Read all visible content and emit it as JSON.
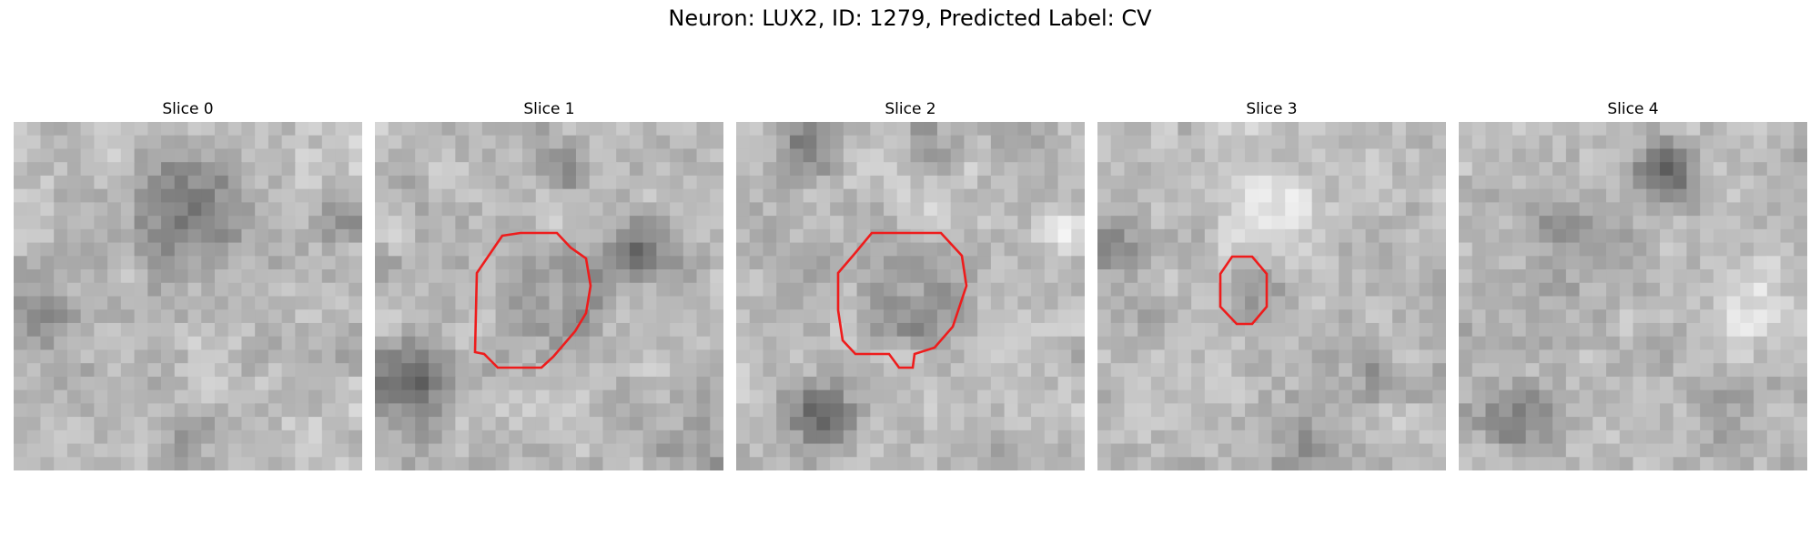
{
  "figure": {
    "title": "Neuron: LUX2, ID: 1279, Predicted Label: CV"
  },
  "panels": [
    {
      "title": "Slice 0",
      "has_contour": false,
      "seed": 11
    },
    {
      "title": "Slice 1",
      "has_contour": true,
      "seed": 23
    },
    {
      "title": "Slice 2",
      "has_contour": true,
      "seed": 37
    },
    {
      "title": "Slice 3",
      "has_contour": true,
      "seed": 41
    },
    {
      "title": "Slice 4",
      "has_contour": false,
      "seed": 53
    }
  ],
  "colors": {
    "contour": "#ee1c1c"
  },
  "grid": {
    "cells": 26
  }
}
